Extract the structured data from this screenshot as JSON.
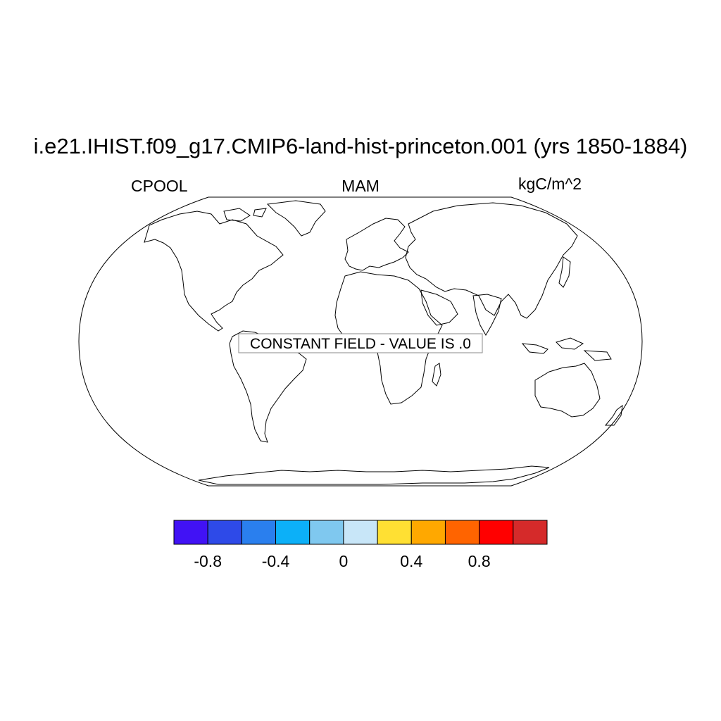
{
  "title": "i.e21.IHIST.f09_g17.CMIP6-land-hist-princeton.001 (yrs 1850-1884)",
  "left_string": "CPOOL",
  "center_string": "MAM",
  "right_string": "kgC/m^2",
  "notice": "CONSTANT FIELD - VALUE IS .0",
  "colorbar": {
    "colors": [
      "#4112f5",
      "#2e4ae8",
      "#2a7fee",
      "#0cb0f8",
      "#7fc8ef",
      "#c8e6f8",
      "#ffe033",
      "#ffa800",
      "#ff6400",
      "#ff0000",
      "#d52a2a"
    ],
    "labels": [
      "-0.8",
      "-0.4",
      "0",
      "0.4",
      "0.8"
    ]
  }
}
